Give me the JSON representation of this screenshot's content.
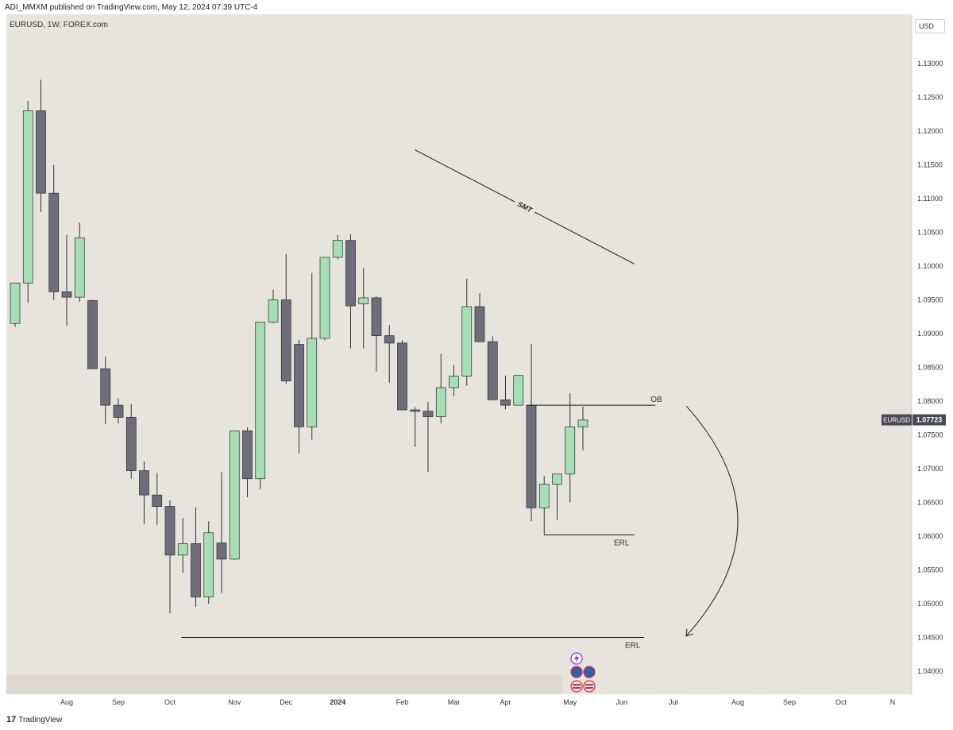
{
  "header": {
    "published": "ADI_MMXM published on TradingView.com, May 12, 2024 07:39 UTC-4"
  },
  "symbol_info": "EURUSD, 1W, FOREX.com",
  "currency": "USD",
  "footer": {
    "logo_mark": "17",
    "logo_text": "TradingView"
  },
  "colors": {
    "bg": "#e7e3dd",
    "up": "#a5e0b5",
    "down": "#6e6e7a",
    "wick": "#333333",
    "line": "#1c1c1c"
  },
  "chart_data": {
    "type": "candlestick",
    "symbol": "EURUSD",
    "interval": "1W",
    "ylim": [
      1.0358,
      1.1413
    ],
    "y_ticks": [
      1.04,
      1.045,
      1.05,
      1.055,
      1.06,
      1.065,
      1.07,
      1.075,
      1.08,
      1.085,
      1.09,
      1.095,
      1.1,
      1.105,
      1.11,
      1.115,
      1.12,
      1.125,
      1.13
    ],
    "y_tick_labels": [
      "1.04000",
      "1.04500",
      "1.05000",
      "1.05500",
      "1.06000",
      "1.06500",
      "1.07000",
      "1.07500",
      "1.08000",
      "1.08500",
      "1.09000",
      "1.09500",
      "1.10000",
      "1.10500",
      "1.11000",
      "1.11500",
      "1.12000",
      "1.12500",
      "1.13000"
    ],
    "x_axis_labels": [
      {
        "text": "Aug",
        "week": 4
      },
      {
        "text": "Sep",
        "week": 8
      },
      {
        "text": "Oct",
        "week": 12
      },
      {
        "text": "Nov",
        "week": 17
      },
      {
        "text": "Dec",
        "week": 21
      },
      {
        "text": "2024",
        "week": 25
      },
      {
        "text": "Feb",
        "week": 30
      },
      {
        "text": "Mar",
        "week": 34
      },
      {
        "text": "Apr",
        "week": 38
      },
      {
        "text": "May",
        "week": 43
      },
      {
        "text": "Jun",
        "week": 47
      },
      {
        "text": "Jul",
        "week": 51
      },
      {
        "text": "Aug",
        "week": 56
      },
      {
        "text": "Sep",
        "week": 60
      },
      {
        "text": "Oct",
        "week": 64
      },
      {
        "text": "N",
        "week": 68
      }
    ],
    "candles": [
      {
        "o": 1.0915,
        "h": 1.0975,
        "l": 1.091,
        "c": 1.0975
      },
      {
        "o": 1.0975,
        "h": 1.1245,
        "l": 1.0945,
        "c": 1.123
      },
      {
        "o": 1.123,
        "h": 1.1276,
        "l": 1.108,
        "c": 1.1108
      },
      {
        "o": 1.1108,
        "h": 1.115,
        "l": 1.095,
        "c": 1.0962
      },
      {
        "o": 1.0962,
        "h": 1.1046,
        "l": 1.0912,
        "c": 1.0954
      },
      {
        "o": 1.0954,
        "h": 1.1064,
        "l": 1.0947,
        "c": 1.1042
      },
      {
        "o": 1.0949,
        "h": 1.095,
        "l": 1.0848,
        "c": 1.0848
      },
      {
        "o": 1.0848,
        "h": 1.0866,
        "l": 1.0766,
        "c": 1.0794
      },
      {
        "o": 1.0794,
        "h": 1.0804,
        "l": 1.0767,
        "c": 1.0776
      },
      {
        "o": 1.0776,
        "h": 1.0796,
        "l": 1.0685,
        "c": 1.0697
      },
      {
        "o": 1.0697,
        "h": 1.0711,
        "l": 1.0618,
        "c": 1.0661
      },
      {
        "o": 1.0661,
        "h": 1.0694,
        "l": 1.0617,
        "c": 1.0644
      },
      {
        "o": 1.0644,
        "h": 1.0653,
        "l": 1.0486,
        "c": 1.0572
      },
      {
        "o": 1.0572,
        "h": 1.0627,
        "l": 1.0546,
        "c": 1.0589
      },
      {
        "o": 1.0589,
        "h": 1.0643,
        "l": 1.0495,
        "c": 1.051
      },
      {
        "o": 1.051,
        "h": 1.0622,
        "l": 1.05,
        "c": 1.0605
      },
      {
        "o": 1.059,
        "h": 1.0695,
        "l": 1.0516,
        "c": 1.0566
      },
      {
        "o": 1.0566,
        "h": 1.0756,
        "l": 1.0565,
        "c": 1.0756
      },
      {
        "o": 1.0756,
        "h": 1.0761,
        "l": 1.0658,
        "c": 1.0685
      },
      {
        "o": 1.0685,
        "h": 1.0917,
        "l": 1.067,
        "c": 1.0917
      },
      {
        "o": 1.0917,
        "h": 1.0965,
        "l": 1.0915,
        "c": 1.095
      },
      {
        "o": 1.095,
        "h": 1.1018,
        "l": 1.0826,
        "c": 1.083
      },
      {
        "o": 1.0884,
        "h": 1.0891,
        "l": 1.0723,
        "c": 1.0762
      },
      {
        "o": 1.0762,
        "h": 1.099,
        "l": 1.0743,
        "c": 1.0893
      },
      {
        "o": 1.0893,
        "h": 1.1007,
        "l": 1.089,
        "c": 1.1013
      },
      {
        "o": 1.1013,
        "h": 1.1046,
        "l": 1.101,
        "c": 1.1038
      },
      {
        "o": 1.1038,
        "h": 1.1047,
        "l": 1.0878,
        "c": 1.0941
      },
      {
        "o": 1.0944,
        "h": 1.0997,
        "l": 1.0878,
        "c": 1.0953
      },
      {
        "o": 1.0953,
        "h": 1.0955,
        "l": 1.0844,
        "c": 1.0897
      },
      {
        "o": 1.0897,
        "h": 1.0913,
        "l": 1.0827,
        "c": 1.0886
      },
      {
        "o": 1.0886,
        "h": 1.089,
        "l": 1.0787,
        "c": 1.0787
      },
      {
        "o": 1.0787,
        "h": 1.0791,
        "l": 1.0732,
        "c": 1.0785
      },
      {
        "o": 1.0785,
        "h": 1.0799,
        "l": 1.0695,
        "c": 1.0777
      },
      {
        "o": 1.0777,
        "h": 1.087,
        "l": 1.0767,
        "c": 1.082
      },
      {
        "o": 1.082,
        "h": 1.0854,
        "l": 1.0807,
        "c": 1.0837
      },
      {
        "o": 1.0837,
        "h": 1.0981,
        "l": 1.0823,
        "c": 1.094
      },
      {
        "o": 1.094,
        "h": 1.096,
        "l": 1.0888,
        "c": 1.0888
      },
      {
        "o": 1.0888,
        "h": 1.0896,
        "l": 1.0802,
        "c": 1.0802
      },
      {
        "o": 1.0802,
        "h": 1.0838,
        "l": 1.0788,
        "c": 1.0794
      },
      {
        "o": 1.0794,
        "h": 1.0838,
        "l": 1.0797,
        "c": 1.0838
      },
      {
        "o": 1.0794,
        "h": 1.0885,
        "l": 1.0622,
        "c": 1.0642
      },
      {
        "o": 1.0642,
        "h": 1.0689,
        "l": 1.0602,
        "c": 1.0677
      },
      {
        "o": 1.0677,
        "h": 1.0692,
        "l": 1.0624,
        "c": 1.0692
      },
      {
        "o": 1.0692,
        "h": 1.0812,
        "l": 1.065,
        "c": 1.0762
      },
      {
        "o": 1.0762,
        "h": 1.0792,
        "l": 1.0727,
        "c": 1.0772
      }
    ],
    "last_price": {
      "symbol": "EURUSD",
      "value": "1.07723",
      "numeric": 1.07723
    },
    "annotations": {
      "smt_label": "SMT",
      "smt_line": {
        "from": {
          "week": 31,
          "price": 1.1172
        },
        "to": {
          "week": 48,
          "price": 1.1003
        }
      },
      "ob": {
        "label": "OB",
        "price": 1.0794,
        "from_week": 40,
        "to_week": 49
      },
      "erl_upper": {
        "label": "ERL",
        "price": 1.0602,
        "from_week": 41,
        "to_week": 48
      },
      "erl_lower": {
        "label": "ERL",
        "price": 1.045,
        "from_week": 13,
        "to_week": 48
      },
      "arrow_curve": {
        "from": {
          "week": 52,
          "price": 1.0793
        },
        "to": {
          "week": 52,
          "price": 1.0452
        }
      }
    },
    "event_markers": [
      "lightning",
      "calendar",
      "calendar",
      "us-flag",
      "us-flag"
    ]
  }
}
